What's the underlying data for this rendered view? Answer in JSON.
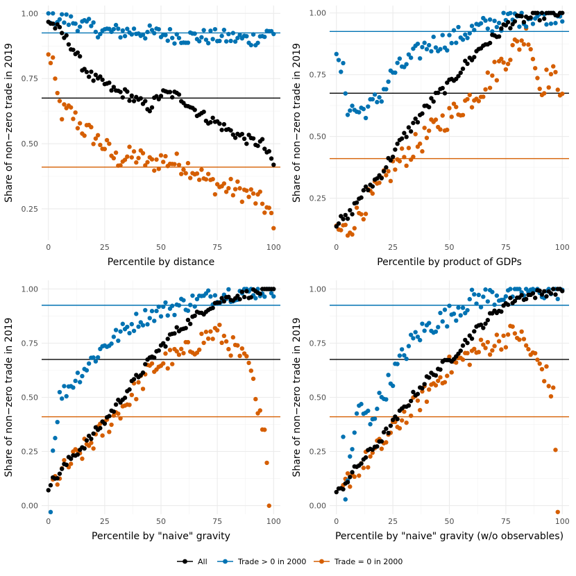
{
  "series_colors": {
    "all": "#000000",
    "trade_pos": "#0072B2",
    "trade_zero": "#D55E00"
  },
  "legend": [
    {
      "key": "all",
      "label": "All"
    },
    {
      "key": "trade_pos",
      "label": "Trade > 0 in 2000"
    },
    {
      "key": "trade_zero",
      "label": "Trade = 0 in 2000"
    }
  ],
  "chart_data": [
    {
      "type": "scatter",
      "xlabel": "Percentile by distance",
      "ylabel": "Share of non−zero trade in 2019",
      "xlim": [
        -3,
        103
      ],
      "ylim": [
        0.13,
        1.03
      ],
      "xticks": [
        0,
        25,
        50,
        75,
        100
      ],
      "yticks": [
        0.25,
        0.5,
        0.75,
        1.0
      ],
      "ytick_labels": [
        "0.25",
        "0.50",
        "0.75",
        "1.00"
      ],
      "hlines": {
        "all": 0.675,
        "trade_pos": 0.925,
        "trade_zero": 0.41
      },
      "anchors": {
        "all": [
          [
            0,
            0.97
          ],
          [
            3,
            0.95
          ],
          [
            6,
            0.92
          ],
          [
            10,
            0.88
          ],
          [
            15,
            0.8
          ],
          [
            20,
            0.75
          ],
          [
            25,
            0.73
          ],
          [
            30,
            0.7
          ],
          [
            35,
            0.69
          ],
          [
            40,
            0.66
          ],
          [
            45,
            0.64
          ],
          [
            50,
            0.69
          ],
          [
            55,
            0.69
          ],
          [
            60,
            0.67
          ],
          [
            65,
            0.63
          ],
          [
            70,
            0.6
          ],
          [
            75,
            0.58
          ],
          [
            80,
            0.55
          ],
          [
            85,
            0.53
          ],
          [
            90,
            0.51
          ],
          [
            95,
            0.5
          ],
          [
            100,
            0.42
          ]
        ],
        "trade_pos": [
          [
            0,
            0.99
          ],
          [
            10,
            0.97
          ],
          [
            25,
            0.93
          ],
          [
            40,
            0.93
          ],
          [
            60,
            0.91
          ],
          [
            75,
            0.91
          ],
          [
            90,
            0.9
          ],
          [
            100,
            0.93
          ]
        ],
        "trade_zero": [
          [
            0,
            0.83
          ],
          [
            2,
            0.82
          ],
          [
            3,
            0.71
          ],
          [
            6,
            0.62
          ],
          [
            10,
            0.62
          ],
          [
            15,
            0.56
          ],
          [
            20,
            0.53
          ],
          [
            25,
            0.49
          ],
          [
            30,
            0.44
          ],
          [
            35,
            0.45
          ],
          [
            40,
            0.45
          ],
          [
            45,
            0.42
          ],
          [
            50,
            0.44
          ],
          [
            55,
            0.43
          ],
          [
            60,
            0.42
          ],
          [
            65,
            0.4
          ],
          [
            70,
            0.36
          ],
          [
            75,
            0.34
          ],
          [
            80,
            0.33
          ],
          [
            85,
            0.32
          ],
          [
            90,
            0.3
          ],
          [
            95,
            0.27
          ],
          [
            98,
            0.24
          ],
          [
            100,
            0.17
          ]
        ]
      },
      "jitter": {
        "all": 0.02,
        "trade_pos": 0.03,
        "trade_zero": 0.04
      }
    },
    {
      "type": "scatter",
      "xlabel": "Percentile by product of GDPs",
      "ylabel": "Share of non−zero trade in 2019",
      "xlim": [
        -3,
        103
      ],
      "ylim": [
        0.08,
        1.03
      ],
      "xticks": [
        0,
        25,
        50,
        75,
        100
      ],
      "yticks": [
        0.25,
        0.5,
        0.75,
        1.0
      ],
      "ytick_labels": [
        "0.25",
        "0.50",
        "0.75",
        "1.00"
      ],
      "hlines": {
        "all": 0.675,
        "trade_pos": 0.925,
        "trade_zero": 0.41
      },
      "anchors": {
        "all": [
          [
            0,
            0.15
          ],
          [
            5,
            0.17
          ],
          [
            10,
            0.25
          ],
          [
            15,
            0.3
          ],
          [
            20,
            0.35
          ],
          [
            25,
            0.43
          ],
          [
            30,
            0.5
          ],
          [
            35,
            0.56
          ],
          [
            40,
            0.62
          ],
          [
            45,
            0.67
          ],
          [
            50,
            0.71
          ],
          [
            55,
            0.77
          ],
          [
            60,
            0.82
          ],
          [
            65,
            0.87
          ],
          [
            70,
            0.9
          ],
          [
            75,
            0.95
          ],
          [
            80,
            0.97
          ],
          [
            90,
            0.99
          ],
          [
            100,
            1.0
          ]
        ],
        "trade_pos": [
          [
            0,
            0.8
          ],
          [
            3,
            0.76
          ],
          [
            5,
            0.62
          ],
          [
            10,
            0.6
          ],
          [
            15,
            0.62
          ],
          [
            20,
            0.67
          ],
          [
            25,
            0.76
          ],
          [
            30,
            0.79
          ],
          [
            35,
            0.83
          ],
          [
            40,
            0.87
          ],
          [
            50,
            0.89
          ],
          [
            60,
            0.93
          ],
          [
            70,
            0.96
          ],
          [
            80,
            0.98
          ],
          [
            100,
            1.0
          ]
        ],
        "trade_zero": [
          [
            0,
            0.12
          ],
          [
            5,
            0.12
          ],
          [
            10,
            0.19
          ],
          [
            15,
            0.25
          ],
          [
            20,
            0.3
          ],
          [
            25,
            0.37
          ],
          [
            30,
            0.42
          ],
          [
            35,
            0.46
          ],
          [
            40,
            0.5
          ],
          [
            45,
            0.55
          ],
          [
            50,
            0.58
          ],
          [
            55,
            0.62
          ],
          [
            60,
            0.66
          ],
          [
            65,
            0.7
          ],
          [
            70,
            0.76
          ],
          [
            75,
            0.82
          ],
          [
            80,
            0.87
          ],
          [
            85,
            0.92
          ],
          [
            90,
            0.7
          ],
          [
            95,
            0.75
          ],
          [
            100,
            0.7
          ]
        ]
      },
      "jitter": {
        "all": 0.02,
        "trade_pos": 0.04,
        "trade_zero": 0.05
      }
    },
    {
      "type": "scatter",
      "xlabel": "Percentile by \"naive\" gravity",
      "ylabel": "Share of non−zero trade in 2019",
      "xlim": [
        -3,
        103
      ],
      "ylim": [
        -0.04,
        1.04
      ],
      "xticks": [
        0,
        25,
        50,
        75,
        100
      ],
      "yticks": [
        0,
        0.25,
        0.5,
        0.75,
        1.0
      ],
      "ytick_labels": [
        "0.00",
        "0.25",
        "0.50",
        "0.75",
        "1.00"
      ],
      "hlines": {
        "all": 0.675,
        "trade_pos": 0.925,
        "trade_zero": 0.41
      },
      "anchors": {
        "all": [
          [
            0,
            0.09
          ],
          [
            5,
            0.15
          ],
          [
            10,
            0.22
          ],
          [
            15,
            0.27
          ],
          [
            20,
            0.33
          ],
          [
            25,
            0.39
          ],
          [
            30,
            0.46
          ],
          [
            35,
            0.53
          ],
          [
            40,
            0.6
          ],
          [
            45,
            0.67
          ],
          [
            50,
            0.73
          ],
          [
            55,
            0.79
          ],
          [
            60,
            0.83
          ],
          [
            65,
            0.87
          ],
          [
            70,
            0.91
          ],
          [
            75,
            0.94
          ],
          [
            80,
            0.96
          ],
          [
            90,
            0.98
          ],
          [
            100,
            1.0
          ]
        ],
        "trade_pos": [
          [
            1,
            0.0
          ],
          [
            2,
            0.25
          ],
          [
            5,
            0.5
          ],
          [
            10,
            0.56
          ],
          [
            15,
            0.62
          ],
          [
            20,
            0.68
          ],
          [
            25,
            0.74
          ],
          [
            30,
            0.78
          ],
          [
            35,
            0.82
          ],
          [
            40,
            0.86
          ],
          [
            45,
            0.88
          ],
          [
            50,
            0.9
          ],
          [
            60,
            0.93
          ],
          [
            70,
            0.96
          ],
          [
            80,
            0.98
          ],
          [
            100,
            1.0
          ]
        ],
        "trade_zero": [
          [
            2,
            0.1
          ],
          [
            5,
            0.14
          ],
          [
            10,
            0.2
          ],
          [
            15,
            0.25
          ],
          [
            20,
            0.3
          ],
          [
            25,
            0.36
          ],
          [
            30,
            0.42
          ],
          [
            35,
            0.48
          ],
          [
            40,
            0.55
          ],
          [
            45,
            0.62
          ],
          [
            50,
            0.66
          ],
          [
            55,
            0.68
          ],
          [
            60,
            0.7
          ],
          [
            65,
            0.74
          ],
          [
            70,
            0.78
          ],
          [
            75,
            0.8
          ],
          [
            80,
            0.75
          ],
          [
            85,
            0.7
          ],
          [
            90,
            0.62
          ],
          [
            93,
            0.4
          ],
          [
            96,
            0.4
          ],
          [
            98,
            0.0
          ]
        ]
      },
      "jitter": {
        "all": 0.02,
        "trade_pos": 0.04,
        "trade_zero": 0.05
      }
    },
    {
      "type": "scatter",
      "xlabel": "Percentile by \"naive\" gravity (w/o observables)",
      "ylabel": "Share of non−zero trade in 2019",
      "xlim": [
        -3,
        103
      ],
      "ylim": [
        -0.04,
        1.04
      ],
      "xticks": [
        0,
        25,
        50,
        75,
        100
      ],
      "yticks": [
        0,
        0.25,
        0.5,
        0.75,
        1.0
      ],
      "ytick_labels": [
        "0.00",
        "0.25",
        "0.50",
        "0.75",
        "1.00"
      ],
      "hlines": {
        "all": 0.675,
        "trade_pos": 0.925,
        "trade_zero": 0.41
      },
      "anchors": {
        "all": [
          [
            0,
            0.05
          ],
          [
            5,
            0.12
          ],
          [
            10,
            0.19
          ],
          [
            15,
            0.25
          ],
          [
            20,
            0.31
          ],
          [
            25,
            0.38
          ],
          [
            30,
            0.45
          ],
          [
            35,
            0.52
          ],
          [
            40,
            0.58
          ],
          [
            45,
            0.63
          ],
          [
            50,
            0.67
          ],
          [
            55,
            0.73
          ],
          [
            60,
            0.79
          ],
          [
            65,
            0.84
          ],
          [
            70,
            0.89
          ],
          [
            75,
            0.93
          ],
          [
            80,
            0.96
          ],
          [
            90,
            0.98
          ],
          [
            100,
            1.0
          ]
        ],
        "trade_pos": [
          [
            3,
            0.33
          ],
          [
            4,
            0.0
          ],
          [
            6,
            0.22
          ],
          [
            10,
            0.45
          ],
          [
            15,
            0.4
          ],
          [
            20,
            0.5
          ],
          [
            25,
            0.6
          ],
          [
            30,
            0.7
          ],
          [
            35,
            0.78
          ],
          [
            40,
            0.82
          ],
          [
            45,
            0.85
          ],
          [
            50,
            0.88
          ],
          [
            55,
            0.92
          ],
          [
            60,
            0.95
          ],
          [
            70,
            0.97
          ],
          [
            80,
            0.99
          ],
          [
            100,
            1.0
          ]
        ],
        "trade_zero": [
          [
            3,
            0.07
          ],
          [
            5,
            0.12
          ],
          [
            10,
            0.18
          ],
          [
            15,
            0.22
          ],
          [
            20,
            0.28
          ],
          [
            25,
            0.34
          ],
          [
            30,
            0.42
          ],
          [
            35,
            0.46
          ],
          [
            40,
            0.52
          ],
          [
            45,
            0.58
          ],
          [
            50,
            0.64
          ],
          [
            55,
            0.67
          ],
          [
            60,
            0.7
          ],
          [
            65,
            0.73
          ],
          [
            70,
            0.75
          ],
          [
            75,
            0.78
          ],
          [
            80,
            0.8
          ],
          [
            85,
            0.72
          ],
          [
            90,
            0.65
          ],
          [
            93,
            0.6
          ],
          [
            96,
            0.5
          ],
          [
            98,
            0.0
          ]
        ]
      },
      "jitter": {
        "all": 0.02,
        "trade_pos": 0.05,
        "trade_zero": 0.05
      }
    }
  ]
}
